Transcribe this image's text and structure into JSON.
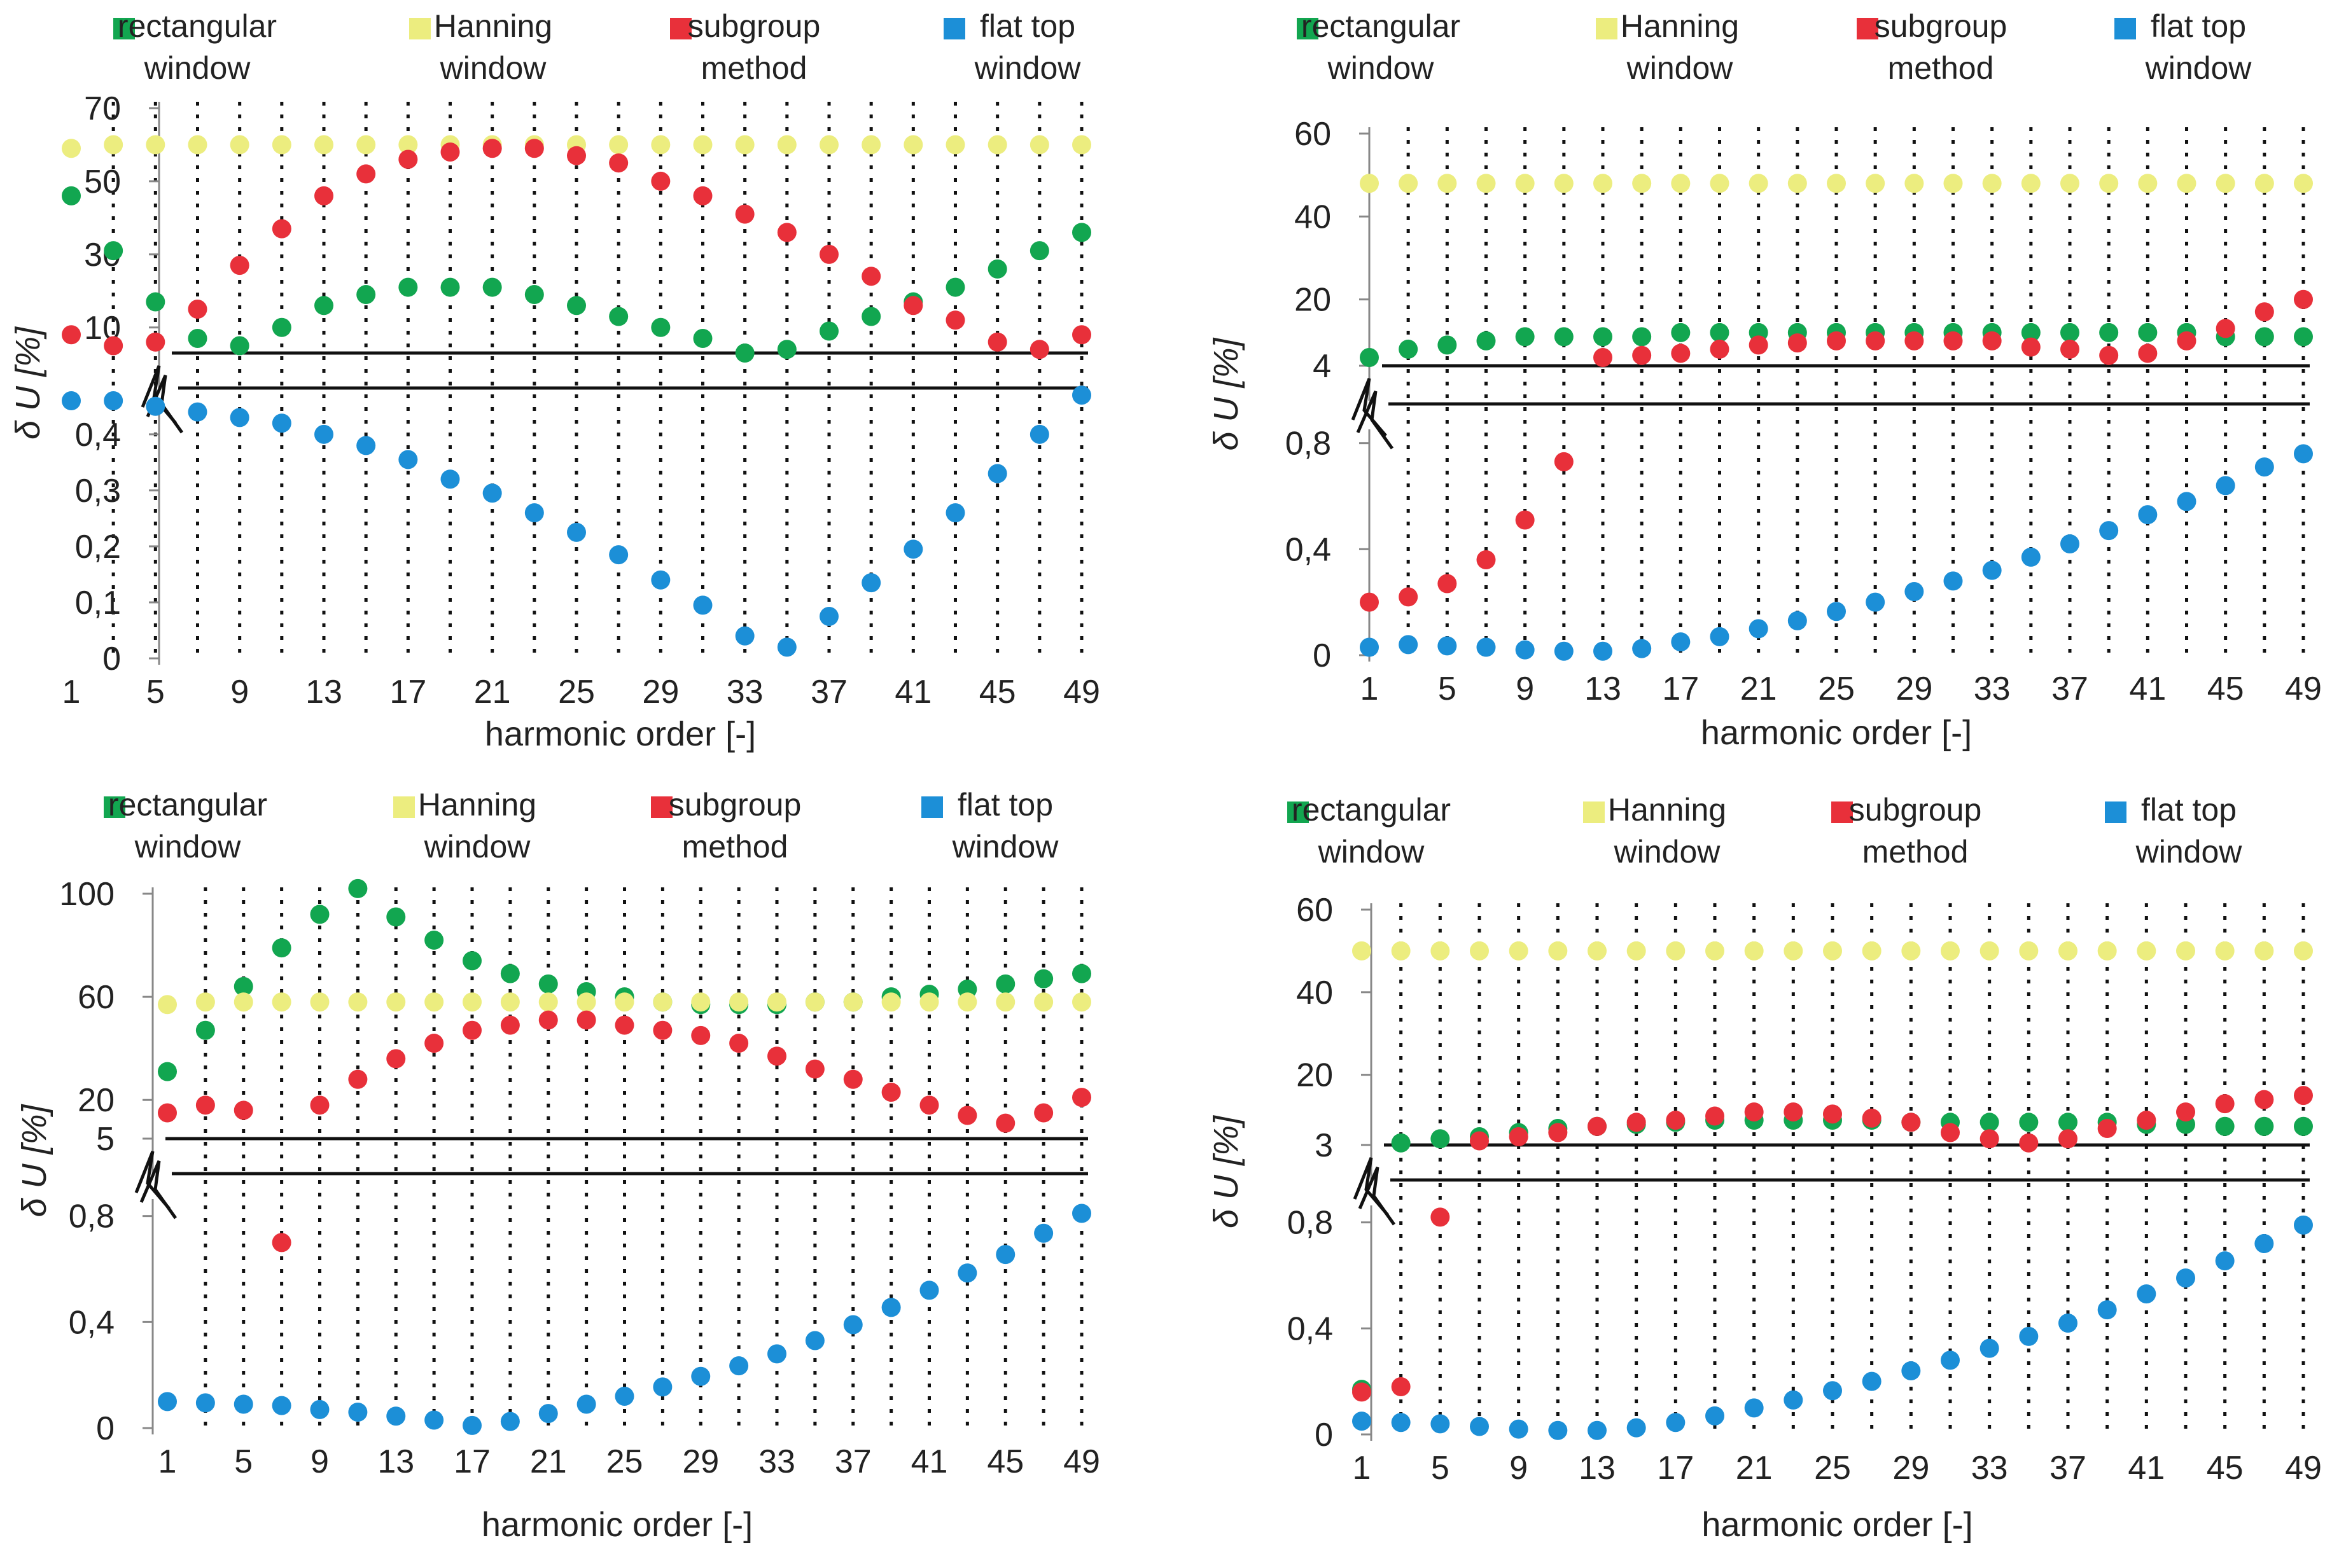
{
  "figure": {
    "legend_labels": [
      [
        "rectangular",
        "window"
      ],
      [
        "Hanning",
        "window"
      ],
      [
        "subgroup",
        "method"
      ],
      [
        "flat top",
        "window"
      ]
    ],
    "xlabel": "harmonic order [-]",
    "ylabel": "δ U [%]",
    "colors": {
      "rectangular": "#12a650",
      "hanning": "#eced7f",
      "subgroup": "#e8303a",
      "flattop": "#1c8fd7",
      "axis": "#111111",
      "text": "#222222"
    }
  },
  "chart_data": [
    {
      "type": "scatter",
      "panel": "top-left",
      "x": [
        1,
        3,
        5,
        7,
        9,
        11,
        13,
        15,
        17,
        19,
        21,
        23,
        25,
        27,
        29,
        31,
        33,
        35,
        37,
        39,
        41,
        43,
        45,
        47,
        49
      ],
      "xticks": [
        1,
        5,
        9,
        13,
        17,
        21,
        25,
        29,
        33,
        37,
        41,
        45,
        49
      ],
      "xticklabels": [
        "1",
        "5",
        "9",
        "13",
        "17",
        "21",
        "25",
        "29",
        "33",
        "37",
        "41",
        "45",
        "49"
      ],
      "xlabel": "harmonic order [-]",
      "ylabel": "δ U [%]",
      "legend": "top",
      "axis_break": true,
      "upper_range": [
        3,
        70
      ],
      "upper_ticks": [
        10,
        30,
        50,
        70
      ],
      "upper_ticklabels": [
        "10",
        "30",
        "50",
        "70"
      ],
      "lower_range": [
        0,
        0.46
      ],
      "lower_ticks": [
        0,
        0.1,
        0.2,
        0.3,
        0.4
      ],
      "lower_ticklabels": [
        "0",
        "0,1",
        "0,2",
        "0,3",
        "0,4"
      ],
      "series": [
        {
          "name": "rectangular window",
          "key": "rectangular",
          "axis": "upper",
          "values": [
            46,
            31,
            17,
            7,
            5,
            10,
            16,
            19,
            21,
            21,
            21,
            19,
            16,
            13,
            10,
            7,
            3,
            4,
            9,
            13,
            17,
            21,
            26,
            31,
            36
          ]
        },
        {
          "name": "Hanning window",
          "key": "hanning",
          "axis": "upper",
          "values": [
            59,
            60,
            60,
            60,
            60,
            60,
            60,
            60,
            60,
            60,
            60,
            60,
            60,
            60,
            60,
            60,
            60,
            60,
            60,
            60,
            60,
            60,
            60,
            60,
            60
          ]
        },
        {
          "name": "subgroup method",
          "key": "subgroup",
          "axis": "upper",
          "values": [
            8,
            5,
            6,
            15,
            27,
            37,
            46,
            52,
            56,
            58,
            59,
            59,
            57,
            55,
            50,
            46,
            41,
            36,
            30,
            24,
            16,
            12,
            6,
            4,
            8
          ]
        },
        {
          "name": "flat top window",
          "key": "flattop",
          "axis": "lower",
          "values": [
            0.46,
            0.46,
            0.45,
            0.44,
            0.43,
            0.42,
            0.4,
            0.38,
            0.355,
            0.32,
            0.295,
            0.26,
            0.225,
            0.185,
            0.14,
            0.095,
            0.04,
            0.02,
            0.075,
            0.135,
            0.195,
            0.26,
            0.33,
            0.4,
            0.47
          ]
        }
      ]
    },
    {
      "type": "scatter",
      "panel": "top-right",
      "x": [
        1,
        3,
        5,
        7,
        9,
        11,
        13,
        15,
        17,
        19,
        21,
        23,
        25,
        27,
        29,
        31,
        33,
        35,
        37,
        39,
        41,
        43,
        45,
        47,
        49
      ],
      "xticks": [
        1,
        5,
        9,
        13,
        17,
        21,
        25,
        29,
        33,
        37,
        41,
        45,
        49
      ],
      "xticklabels": [
        "1",
        "5",
        "9",
        "13",
        "17",
        "21",
        "25",
        "29",
        "33",
        "37",
        "41",
        "45",
        "49"
      ],
      "xlabel": "harmonic order [-]",
      "ylabel": "δ U [%]",
      "legend": "top",
      "axis_break": true,
      "upper_range": [
        4,
        60
      ],
      "upper_ticks": [
        4,
        20,
        40,
        60
      ],
      "upper_ticklabels": [
        "4",
        "20",
        "40",
        "60"
      ],
      "lower_range": [
        0,
        0.9
      ],
      "lower_ticks": [
        0,
        0.4,
        0.8
      ],
      "lower_ticklabels": [
        "0",
        "0,4",
        "0,8"
      ],
      "series": [
        {
          "name": "rectangular window",
          "key": "rectangular",
          "axis": "upper",
          "values": [
            6,
            8,
            9,
            10,
            11,
            11,
            11,
            11,
            12,
            12,
            12,
            12,
            12,
            12,
            12,
            12,
            12,
            12,
            12,
            12,
            12,
            12,
            11,
            11,
            11
          ]
        },
        {
          "name": "Hanning window",
          "key": "hanning",
          "axis": "upper",
          "values": [
            48,
            48,
            48,
            48,
            48,
            48,
            48,
            48,
            48,
            48,
            48,
            48,
            48,
            48,
            48,
            48,
            48,
            48,
            48,
            48,
            48,
            48,
            48,
            48,
            48
          ]
        },
        {
          "name": "subgroup method",
          "key": "subgroup",
          "axis": "mixed",
          "values": [
            0.2,
            0.22,
            0.27,
            0.36,
            0.51,
            0.73,
            6,
            6.5,
            7,
            8,
            9,
            9.5,
            10,
            10,
            10,
            10,
            10,
            8.5,
            8,
            6.5,
            7,
            10,
            13,
            17,
            20
          ],
          "value_axes": [
            "lower",
            "lower",
            "lower",
            "lower",
            "lower",
            "lower",
            "upper",
            "upper",
            "upper",
            "upper",
            "upper",
            "upper",
            "upper",
            "upper",
            "upper",
            "upper",
            "upper",
            "upper",
            "upper",
            "upper",
            "upper",
            "upper",
            "upper",
            "upper",
            "upper"
          ]
        },
        {
          "name": "flat top window",
          "key": "flattop",
          "axis": "lower",
          "values": [
            0.03,
            0.04,
            0.035,
            0.03,
            0.02,
            0.015,
            0.015,
            0.025,
            0.05,
            0.07,
            0.1,
            0.13,
            0.165,
            0.2,
            0.24,
            0.28,
            0.32,
            0.37,
            0.42,
            0.47,
            0.53,
            0.58,
            0.64,
            0.71,
            0.76
          ]
        }
      ]
    },
    {
      "type": "scatter",
      "panel": "bottom-left",
      "x": [
        1,
        3,
        5,
        7,
        9,
        11,
        13,
        15,
        17,
        19,
        21,
        23,
        25,
        27,
        29,
        31,
        33,
        35,
        37,
        39,
        41,
        43,
        45,
        47,
        49
      ],
      "xticks": [
        1,
        5,
        9,
        13,
        17,
        21,
        25,
        29,
        33,
        37,
        41,
        45,
        49
      ],
      "xticklabels": [
        "1",
        "5",
        "9",
        "13",
        "17",
        "21",
        "25",
        "29",
        "33",
        "37",
        "41",
        "45",
        "49"
      ],
      "xlabel": "harmonic order [-]",
      "ylabel": "δ U [%]",
      "legend": "top",
      "axis_break": true,
      "upper_range": [
        5,
        100
      ],
      "upper_ticks": [
        5,
        20,
        60,
        100
      ],
      "upper_ticklabels": [
        "5",
        "20",
        "60",
        "100"
      ],
      "lower_range": [
        0,
        0.9
      ],
      "lower_ticks": [
        0,
        0.4,
        0.8
      ],
      "lower_ticklabels": [
        "0",
        "0,4",
        "0,8"
      ],
      "series": [
        {
          "name": "rectangular window",
          "key": "rectangular",
          "axis": "upper",
          "values": [
            31,
            47,
            64,
            79,
            92,
            102,
            91,
            82,
            74,
            69,
            65,
            62,
            60,
            58,
            57,
            57,
            57,
            58,
            58,
            60,
            61,
            63,
            65,
            67,
            69
          ]
        },
        {
          "name": "Hanning window",
          "key": "hanning",
          "axis": "upper",
          "values": [
            57,
            58,
            58,
            58,
            58,
            58,
            58,
            58,
            58,
            58,
            58,
            58,
            58,
            58,
            58,
            58,
            58,
            58,
            58,
            58,
            58,
            58,
            58,
            58,
            58
          ]
        },
        {
          "name": "subgroup method",
          "key": "subgroup",
          "axis": "mixed",
          "values": [
            15,
            18,
            16,
            0.7,
            18,
            28,
            36,
            42,
            47,
            49,
            51,
            51,
            49,
            47,
            45,
            42,
            37,
            32,
            28,
            23,
            18,
            14,
            11,
            15,
            21
          ],
          "value_axes": [
            "upper",
            "upper",
            "upper",
            "lower",
            "upper",
            "upper",
            "upper",
            "upper",
            "upper",
            "upper",
            "upper",
            "upper",
            "upper",
            "upper",
            "upper",
            "upper",
            "upper",
            "upper",
            "upper",
            "upper",
            "upper",
            "upper",
            "upper",
            "upper",
            "upper"
          ]
        },
        {
          "name": "flat top window",
          "key": "flattop",
          "axis": "lower",
          "values": [
            0.1,
            0.095,
            0.09,
            0.085,
            0.07,
            0.06,
            0.045,
            0.03,
            0.01,
            0.025,
            0.055,
            0.09,
            0.12,
            0.155,
            0.195,
            0.235,
            0.28,
            0.33,
            0.39,
            0.455,
            0.52,
            0.585,
            0.655,
            0.735,
            0.81
          ]
        }
      ]
    },
    {
      "type": "scatter",
      "panel": "bottom-right",
      "x": [
        1,
        3,
        5,
        7,
        9,
        11,
        13,
        15,
        17,
        19,
        21,
        23,
        25,
        27,
        29,
        31,
        33,
        35,
        37,
        39,
        41,
        43,
        45,
        47,
        49
      ],
      "xticks": [
        1,
        5,
        9,
        13,
        17,
        21,
        25,
        29,
        33,
        37,
        41,
        45,
        49
      ],
      "xticklabels": [
        "1",
        "5",
        "9",
        "13",
        "17",
        "21",
        "25",
        "29",
        "33",
        "37",
        "41",
        "45",
        "49"
      ],
      "xlabel": "harmonic order [-]",
      "ylabel": "δ U [%]",
      "legend": "top",
      "axis_break": true,
      "upper_range": [
        3,
        60
      ],
      "upper_ticks": [
        3,
        20,
        40,
        60
      ],
      "upper_ticklabels": [
        "3",
        "20",
        "40",
        "60"
      ],
      "lower_range": [
        0,
        0.9
      ],
      "lower_ticks": [
        0,
        0.4,
        0.8
      ],
      "lower_ticklabels": [
        "0",
        "0,4",
        "0,8"
      ],
      "series": [
        {
          "name": "rectangular window",
          "key": "rectangular",
          "axis": "mixed",
          "values": [
            0.17,
            3.5,
            4.5,
            5,
            6,
            7,
            7.5,
            8,
            8.5,
            9,
            9,
            9,
            9,
            9,
            8.5,
            8.5,
            8.5,
            8.5,
            8.5,
            8.5,
            8,
            8,
            7.5,
            7.5,
            7.5
          ],
          "value_axes": [
            "lower",
            "upper",
            "upper",
            "upper",
            "upper",
            "upper",
            "upper",
            "upper",
            "upper",
            "upper",
            "upper",
            "upper",
            "upper",
            "upper",
            "upper",
            "upper",
            "upper",
            "upper",
            "upper",
            "upper",
            "upper",
            "upper",
            "upper",
            "upper",
            "upper"
          ]
        },
        {
          "name": "Hanning window",
          "key": "hanning",
          "axis": "upper",
          "values": [
            50,
            50,
            50,
            50,
            50,
            50,
            50,
            50,
            50,
            50,
            50,
            50,
            50,
            50,
            50,
            50,
            50,
            50,
            50,
            50,
            50,
            50,
            50,
            50,
            50
          ]
        },
        {
          "name": "subgroup method",
          "key": "subgroup",
          "axis": "mixed",
          "values": [
            0.16,
            0.18,
            0.82,
            4,
            5,
            6,
            7.5,
            8.5,
            9,
            10,
            11,
            11,
            10.5,
            9.5,
            8.5,
            6,
            4.5,
            3.5,
            4.5,
            7,
            9,
            11,
            13,
            14,
            15
          ],
          "value_axes": [
            "lower",
            "lower",
            "lower",
            "upper",
            "upper",
            "upper",
            "upper",
            "upper",
            "upper",
            "upper",
            "upper",
            "upper",
            "upper",
            "upper",
            "upper",
            "upper",
            "upper",
            "upper",
            "upper",
            "upper",
            "upper",
            "upper",
            "upper",
            "upper",
            "upper"
          ]
        },
        {
          "name": "flat top window",
          "key": "flattop",
          "axis": "lower",
          "values": [
            0.05,
            0.045,
            0.04,
            0.03,
            0.02,
            0.015,
            0.015,
            0.025,
            0.045,
            0.07,
            0.1,
            0.13,
            0.165,
            0.2,
            0.24,
            0.28,
            0.325,
            0.37,
            0.42,
            0.47,
            0.53,
            0.59,
            0.655,
            0.72,
            0.79
          ]
        }
      ]
    }
  ]
}
